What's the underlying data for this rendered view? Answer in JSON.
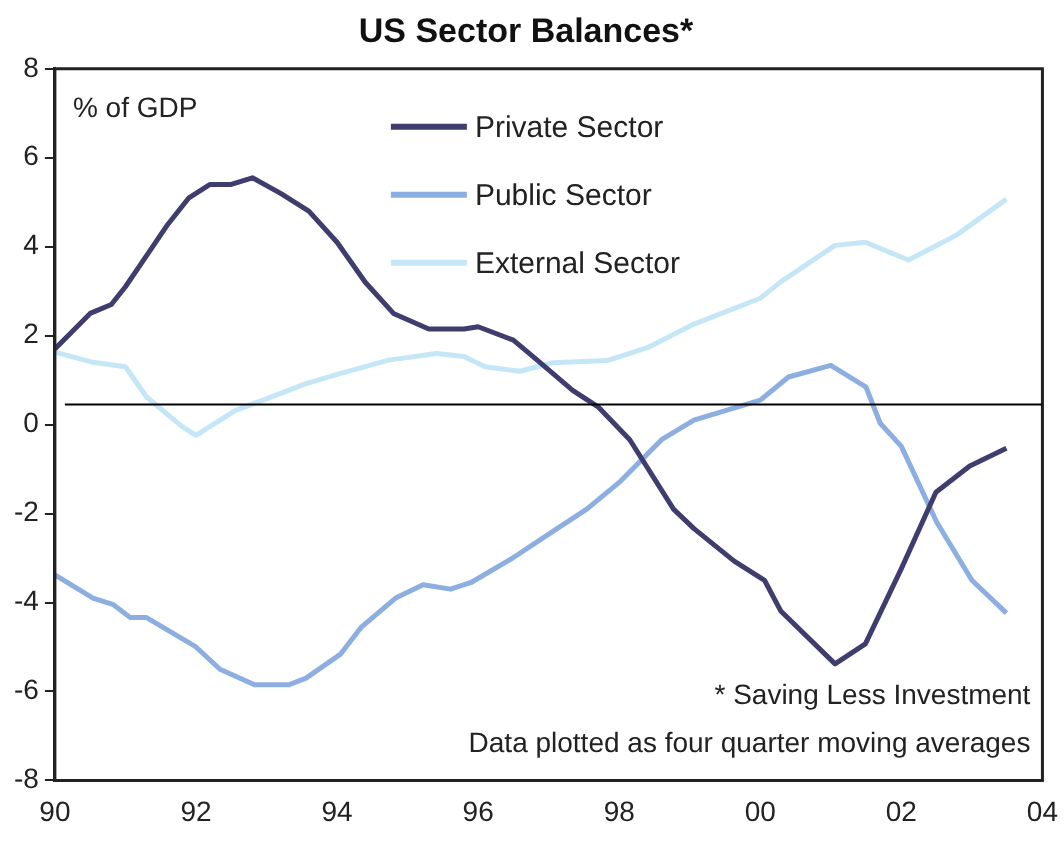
{
  "chart_data": {
    "type": "line",
    "title": "US Sector Balances*",
    "annotations": [
      "% of GDP",
      "* Saving Less Investment",
      "Data plotted as four quarter moving averages"
    ],
    "xlim": [
      1990,
      2004
    ],
    "xticks": [
      {
        "value": 1990,
        "label": "90"
      },
      {
        "value": 1992,
        "label": "92"
      },
      {
        "value": 1994,
        "label": "94"
      },
      {
        "value": 1996,
        "label": "96"
      },
      {
        "value": 1998,
        "label": "98"
      },
      {
        "value": 2000,
        "label": "00"
      },
      {
        "value": 2002,
        "label": "02"
      },
      {
        "value": 2004,
        "label": "04"
      }
    ],
    "ylim": [
      -8,
      8
    ],
    "yticks": [
      -8,
      -6,
      -4,
      -2,
      0,
      2,
      4,
      6,
      8
    ],
    "grid": false,
    "legend": "top",
    "marker": "none",
    "line_style": "solid",
    "ref_lines": [
      {
        "axis": "y",
        "value": 0.45,
        "color": "#000000"
      }
    ],
    "series": [
      {
        "name": "Private Sector",
        "color": "#3f3d6e",
        "x": [
          1990.0,
          1990.25,
          1990.5,
          1990.8,
          1991.0,
          1991.3,
          1991.6,
          1991.9,
          1992.2,
          1992.5,
          1992.8,
          1993.2,
          1993.6,
          1994.0,
          1994.4,
          1994.8,
          1995.3,
          1995.8,
          1996.0,
          1996.5,
          1996.8,
          1997.34,
          1997.7,
          1998.15,
          1998.77,
          1999.06,
          1999.63,
          2000.06,
          2000.29,
          2001.06,
          2001.49,
          2002.0,
          2002.49,
          2002.97,
          2003.49
        ],
        "values": [
          1.7,
          2.1,
          2.5,
          2.7,
          3.1,
          3.8,
          4.5,
          5.1,
          5.4,
          5.4,
          5.55,
          5.2,
          4.8,
          4.1,
          3.2,
          2.5,
          2.15,
          2.15,
          2.2,
          1.9,
          1.5,
          0.77,
          0.4,
          -0.34,
          -1.9,
          -2.34,
          -3.07,
          -3.5,
          -4.19,
          -5.38,
          -4.93,
          -3.24,
          -1.52,
          -0.93,
          -0.53
        ]
      },
      {
        "name": "Public Sector",
        "color": "#8caee0",
        "x": [
          1990.0,
          1990.54,
          1990.83,
          1991.07,
          1991.3,
          1992.0,
          1992.34,
          1992.83,
          1993.32,
          1993.56,
          1994.05,
          1994.34,
          1994.83,
          1995.22,
          1995.61,
          1995.9,
          1996.49,
          1997.06,
          1997.54,
          1998.0,
          1998.6,
          1999.06,
          2000.0,
          2000.4,
          2001.0,
          2001.5,
          2001.7,
          2002.0,
          2002.5,
          2003.0,
          2003.49
        ],
        "values": [
          -3.38,
          -3.9,
          -4.05,
          -4.34,
          -4.34,
          -5.0,
          -5.5,
          -5.85,
          -5.85,
          -5.7,
          -5.16,
          -4.56,
          -3.9,
          -3.6,
          -3.7,
          -3.55,
          -3.0,
          -2.4,
          -1.9,
          -1.3,
          -0.34,
          0.1,
          0.55,
          1.07,
          1.33,
          0.84,
          0.03,
          -0.49,
          -2.19,
          -3.5,
          -4.24
        ]
      },
      {
        "name": "External Sector",
        "color": "#c5e6f7",
        "x": [
          1990.0,
          1990.54,
          1991.0,
          1991.3,
          1991.8,
          1992.0,
          1992.56,
          1992.95,
          1993.56,
          1994.05,
          1994.73,
          1995.41,
          1995.8,
          1996.1,
          1996.59,
          1997.06,
          1997.83,
          1998.4,
          1999.06,
          2000.0,
          2000.29,
          2001.06,
          2001.49,
          2002.1,
          2002.78,
          2003.49
        ],
        "values": [
          1.63,
          1.4,
          1.3,
          0.62,
          -0.04,
          -0.24,
          0.32,
          0.55,
          0.92,
          1.15,
          1.45,
          1.6,
          1.53,
          1.3,
          1.2,
          1.39,
          1.44,
          1.73,
          2.26,
          2.84,
          3.21,
          4.03,
          4.1,
          3.7,
          4.26,
          5.07
        ]
      }
    ]
  }
}
